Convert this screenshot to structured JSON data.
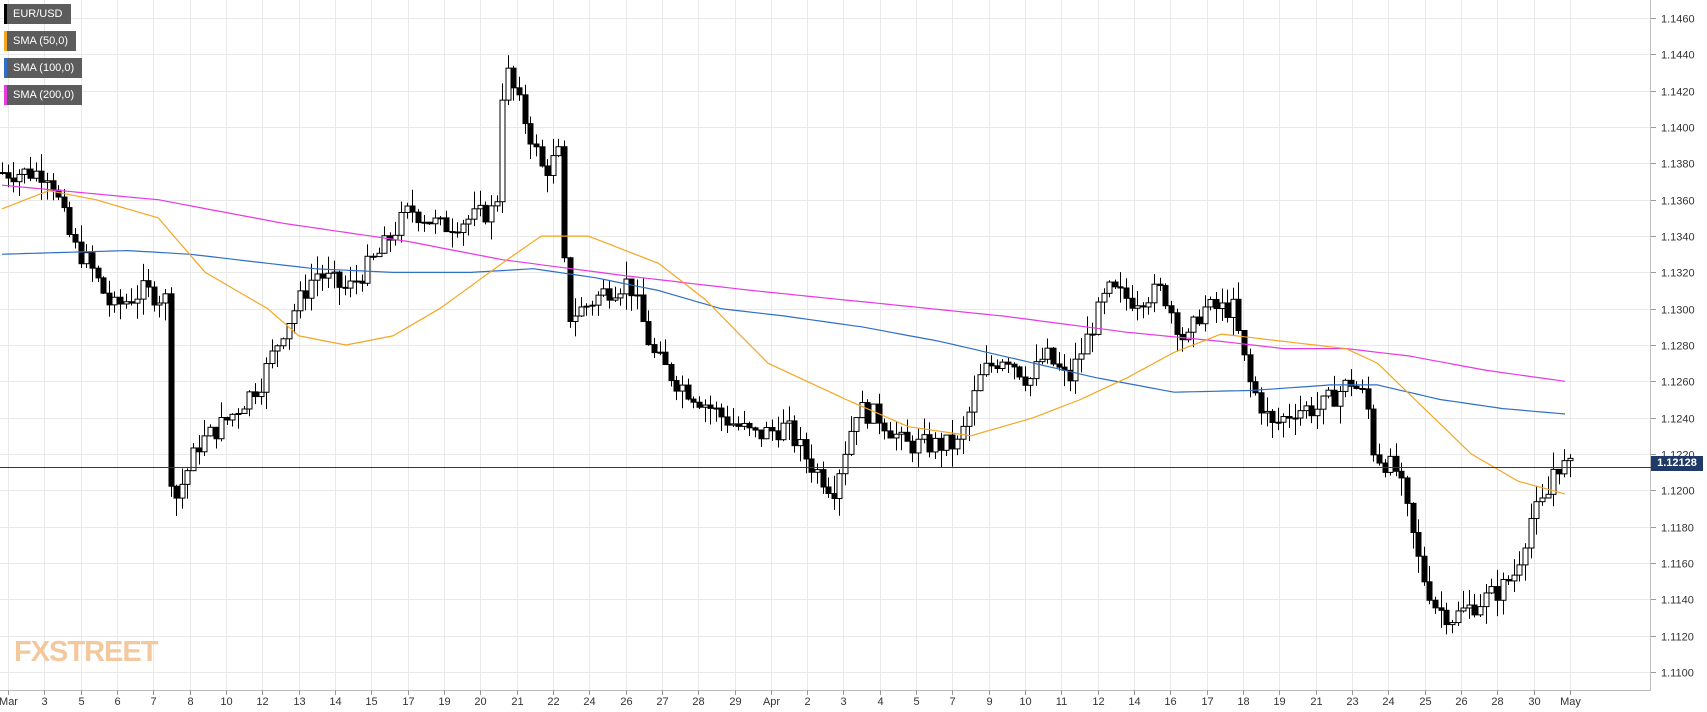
{
  "legend": [
    {
      "label": "EUR/USD",
      "color": "#000000"
    },
    {
      "label": "SMA (50,0)",
      "color": "#f5a623"
    },
    {
      "label": "SMA (100,0)",
      "color": "#2f6fc4"
    },
    {
      "label": "SMA (200,0)",
      "color": "#e63ae6"
    }
  ],
  "brand": "FXSTREET",
  "current_price_label": "1.12128",
  "colors": {
    "up": "#ffffff",
    "down": "#000000",
    "sma50": "#f5a623",
    "sma100": "#2f6fc4",
    "sma200": "#e63ae6",
    "price_line": "#1f3a66",
    "grid": "#e9e9e9",
    "axis_text": "#333333"
  },
  "chart_data": {
    "type": "candlestick",
    "pair": "EUR/USD",
    "ylim": [
      1.109,
      1.147
    ],
    "y_ticks": [
      "1.1100",
      "1.1120",
      "1.1140",
      "1.1160",
      "1.1180",
      "1.1200",
      "1.1220",
      "1.1240",
      "1.1260",
      "1.1280",
      "1.1300",
      "1.1320",
      "1.1340",
      "1.1360",
      "1.1380",
      "1.1400",
      "1.1420",
      "1.1440",
      "1.1460"
    ],
    "x_ticks": [
      "Mar",
      "3",
      "5",
      "6",
      "7",
      "8",
      "10",
      "12",
      "13",
      "14",
      "15",
      "17",
      "19",
      "20",
      "21",
      "22",
      "24",
      "26",
      "27",
      "28",
      "29",
      "Apr",
      "2",
      "3",
      "4",
      "5",
      "7",
      "9",
      "10",
      "11",
      "12",
      "14",
      "16",
      "17",
      "18",
      "19",
      "21",
      "23",
      "24",
      "25",
      "26",
      "28",
      "30",
      "May"
    ],
    "current_price": 1.12128,
    "close_anchors": [
      [
        0.0,
        1.1375
      ],
      [
        0.03,
        1.1375
      ],
      [
        0.045,
        1.1335
      ],
      [
        0.055,
        1.1325
      ],
      [
        0.07,
        1.13
      ],
      [
        0.09,
        1.131
      ],
      [
        0.105,
        1.1305
      ],
      [
        0.108,
        1.119
      ],
      [
        0.125,
        1.1225
      ],
      [
        0.145,
        1.124
      ],
      [
        0.165,
        1.126
      ],
      [
        0.18,
        1.129
      ],
      [
        0.2,
        1.132
      ],
      [
        0.22,
        1.131
      ],
      [
        0.24,
        1.133
      ],
      [
        0.26,
        1.1355
      ],
      [
        0.28,
        1.1345
      ],
      [
        0.3,
        1.135
      ],
      [
        0.315,
        1.1355
      ],
      [
        0.32,
        1.1435
      ],
      [
        0.335,
        1.14
      ],
      [
        0.345,
        1.1375
      ],
      [
        0.355,
        1.1385
      ],
      [
        0.36,
        1.1295
      ],
      [
        0.37,
        1.13
      ],
      [
        0.385,
        1.131
      ],
      [
        0.4,
        1.1315
      ],
      [
        0.415,
        1.1275
      ],
      [
        0.43,
        1.126
      ],
      [
        0.445,
        1.125
      ],
      [
        0.46,
        1.124
      ],
      [
        0.48,
        1.123
      ],
      [
        0.5,
        1.1235
      ],
      [
        0.515,
        1.1215
      ],
      [
        0.53,
        1.12
      ],
      [
        0.545,
        1.1245
      ],
      [
        0.56,
        1.124
      ],
      [
        0.575,
        1.1225
      ],
      [
        0.59,
        1.1225
      ],
      [
        0.61,
        1.1225
      ],
      [
        0.625,
        1.1265
      ],
      [
        0.64,
        1.1275
      ],
      [
        0.655,
        1.126
      ],
      [
        0.665,
        1.1275
      ],
      [
        0.68,
        1.126
      ],
      [
        0.695,
        1.129
      ],
      [
        0.705,
        1.131
      ],
      [
        0.72,
        1.1305
      ],
      [
        0.74,
        1.131
      ],
      [
        0.755,
        1.128
      ],
      [
        0.765,
        1.13
      ],
      [
        0.785,
        1.13
      ],
      [
        0.795,
        1.126
      ],
      [
        0.81,
        1.1235
      ],
      [
        0.825,
        1.1245
      ],
      [
        0.84,
        1.1245
      ],
      [
        0.86,
        1.126
      ],
      [
        0.87,
        1.125
      ],
      [
        0.875,
        1.122
      ],
      [
        0.89,
        1.121
      ],
      [
        0.905,
        1.1155
      ],
      [
        0.915,
        1.1135
      ],
      [
        0.925,
        1.113
      ],
      [
        0.935,
        1.1135
      ],
      [
        0.945,
        1.114
      ],
      [
        0.955,
        1.1145
      ],
      [
        0.965,
        1.1155
      ],
      [
        0.975,
        1.1185
      ],
      [
        0.985,
        1.1195
      ],
      [
        0.99,
        1.1215
      ],
      [
        1.0,
        1.1212
      ]
    ],
    "sma50_anchors": [
      [
        0.0,
        1.1355
      ],
      [
        0.03,
        1.1365
      ],
      [
        0.06,
        1.136
      ],
      [
        0.1,
        1.135
      ],
      [
        0.13,
        1.132
      ],
      [
        0.17,
        1.13
      ],
      [
        0.19,
        1.1285
      ],
      [
        0.22,
        1.128
      ],
      [
        0.25,
        1.1285
      ],
      [
        0.28,
        1.13
      ],
      [
        0.32,
        1.1325
      ],
      [
        0.345,
        1.134
      ],
      [
        0.375,
        1.134
      ],
      [
        0.42,
        1.1325
      ],
      [
        0.45,
        1.1305
      ],
      [
        0.49,
        1.127
      ],
      [
        0.54,
        1.125
      ],
      [
        0.58,
        1.1235
      ],
      [
        0.62,
        1.123
      ],
      [
        0.66,
        1.124
      ],
      [
        0.69,
        1.125
      ],
      [
        0.72,
        1.1262
      ],
      [
        0.75,
        1.1276
      ],
      [
        0.78,
        1.1286
      ],
      [
        0.82,
        1.1282
      ],
      [
        0.86,
        1.1278
      ],
      [
        0.88,
        1.127
      ],
      [
        0.91,
        1.1245
      ],
      [
        0.94,
        1.122
      ],
      [
        0.97,
        1.1205
      ],
      [
        1.0,
        1.1198
      ]
    ],
    "sma100_anchors": [
      [
        0.0,
        1.133
      ],
      [
        0.08,
        1.1332
      ],
      [
        0.12,
        1.133
      ],
      [
        0.16,
        1.1326
      ],
      [
        0.2,
        1.1322
      ],
      [
        0.25,
        1.132
      ],
      [
        0.3,
        1.132
      ],
      [
        0.34,
        1.1322
      ],
      [
        0.38,
        1.1317
      ],
      [
        0.42,
        1.131
      ],
      [
        0.46,
        1.13
      ],
      [
        0.5,
        1.1296
      ],
      [
        0.55,
        1.129
      ],
      [
        0.6,
        1.1282
      ],
      [
        0.65,
        1.1272
      ],
      [
        0.7,
        1.1262
      ],
      [
        0.75,
        1.1254
      ],
      [
        0.8,
        1.1255
      ],
      [
        0.85,
        1.1258
      ],
      [
        0.88,
        1.1258
      ],
      [
        0.92,
        1.125
      ],
      [
        0.96,
        1.1245
      ],
      [
        1.0,
        1.1242
      ]
    ],
    "sma200_anchors": [
      [
        0.0,
        1.1368
      ],
      [
        0.1,
        1.136
      ],
      [
        0.18,
        1.1347
      ],
      [
        0.26,
        1.1337
      ],
      [
        0.32,
        1.1327
      ],
      [
        0.4,
        1.1318
      ],
      [
        0.48,
        1.131
      ],
      [
        0.56,
        1.1303
      ],
      [
        0.64,
        1.1296
      ],
      [
        0.72,
        1.1287
      ],
      [
        0.78,
        1.1282
      ],
      [
        0.82,
        1.1278
      ],
      [
        0.86,
        1.1278
      ],
      [
        0.9,
        1.1274
      ],
      [
        0.95,
        1.1266
      ],
      [
        1.0,
        1.126
      ]
    ]
  }
}
